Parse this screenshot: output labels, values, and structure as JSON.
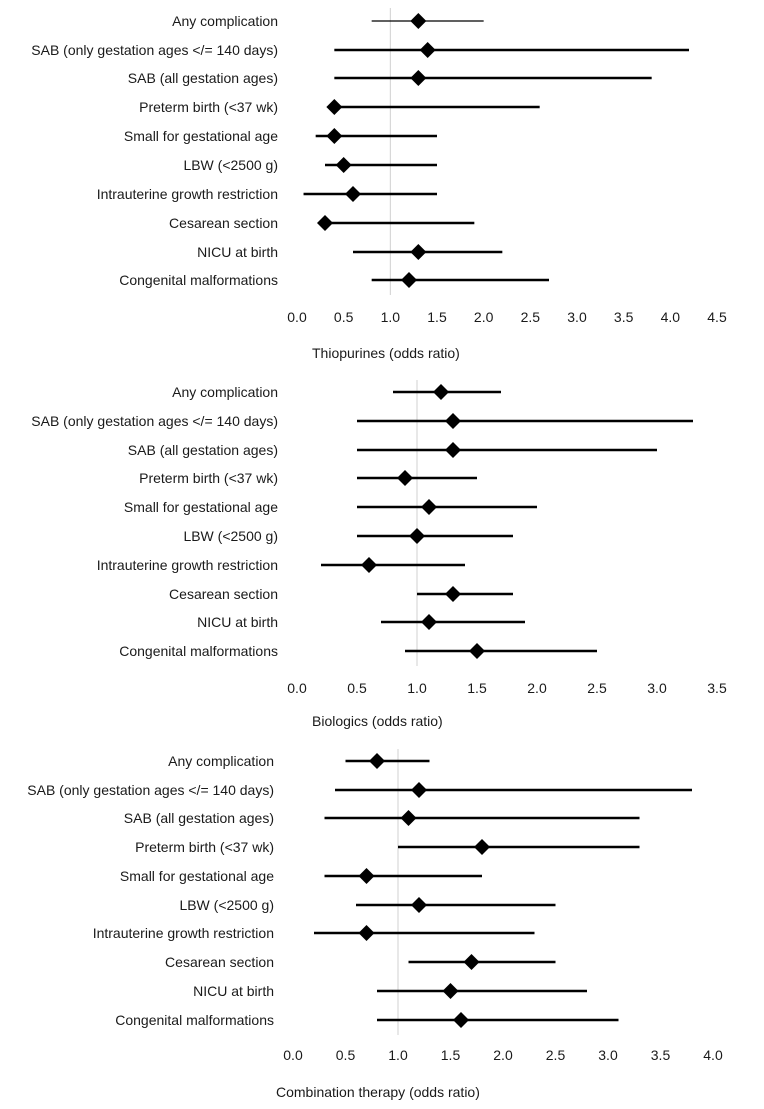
{
  "chart_data": [
    {
      "type": "forest",
      "title": "",
      "xlabel": "Thiopurines (odds ratio)",
      "xlim": [
        0,
        4.5
      ],
      "ticks": [
        "0.0",
        "0.5",
        "1.0",
        "1.5",
        "2.0",
        "2.5",
        "3.0",
        "3.5",
        "4.0",
        "4.5"
      ],
      "reference_line": 1.0,
      "categories": [
        "Any complication",
        "SAB (only gestation ages </= 140 days)",
        "SAB (all gestation ages)",
        "Preterm birth (<37 wk)",
        "Small for gestational age",
        "LBW (<2500 g)",
        "Intrauterine growth restriction",
        "Cesarean section",
        "NICU at birth",
        "Congenital malformations"
      ],
      "odds_ratio": [
        1.3,
        1.4,
        1.3,
        0.4,
        0.4,
        0.5,
        0.6,
        0.3,
        1.3,
        1.2
      ],
      "ci_lower": [
        0.8,
        0.4,
        0.4,
        0.4,
        0.2,
        0.3,
        0.07,
        0.3,
        0.6,
        0.8
      ],
      "ci_upper": [
        2.0,
        4.2,
        3.8,
        2.6,
        1.5,
        1.5,
        1.5,
        1.9,
        2.2,
        2.7
      ]
    },
    {
      "type": "forest",
      "title": "",
      "xlabel": "Biologics (odds ratio)",
      "xlim": [
        0,
        3.5
      ],
      "ticks": [
        "0.0",
        "0.5",
        "1.0",
        "1.5",
        "2.0",
        "2.5",
        "3.0",
        "3.5"
      ],
      "reference_line": 1.0,
      "categories": [
        "Any complication",
        "SAB (only gestation ages </= 140 days)",
        "SAB (all gestation ages)",
        "Preterm birth (<37 wk)",
        "Small for gestational age",
        "LBW (<2500 g)",
        "Intrauterine growth restriction",
        "Cesarean section",
        "NICU at birth",
        "Congenital malformations"
      ],
      "odds_ratio": [
        1.2,
        1.3,
        1.3,
        0.9,
        1.1,
        1.0,
        0.6,
        1.3,
        1.1,
        1.5
      ],
      "ci_lower": [
        0.8,
        0.5,
        0.5,
        0.5,
        0.5,
        0.5,
        0.2,
        1.0,
        0.7,
        0.9
      ],
      "ci_upper": [
        1.7,
        3.3,
        3.0,
        1.5,
        2.0,
        1.8,
        1.4,
        1.8,
        1.9,
        2.5
      ]
    },
    {
      "type": "forest",
      "title": "",
      "xlabel": "Combination therapy (odds ratio)",
      "xlim": [
        0,
        4.0
      ],
      "ticks": [
        "0.0",
        "0.5",
        "1.0",
        "1.5",
        "2.0",
        "2.5",
        "3.0",
        "3.5",
        "4.0"
      ],
      "reference_line": 1.0,
      "categories": [
        "Any complication",
        "SAB (only gestation ages </= 140 days)",
        "SAB (all gestation ages)",
        "Preterm birth (<37 wk)",
        "Small for gestational age",
        "LBW (<2500 g)",
        "Intrauterine growth restriction",
        "Cesarean section",
        "NICU at birth",
        "Congenital malformations"
      ],
      "odds_ratio": [
        0.8,
        1.2,
        1.1,
        1.8,
        0.7,
        1.2,
        0.7,
        1.7,
        1.5,
        1.6
      ],
      "ci_lower": [
        0.5,
        0.4,
        0.3,
        1.0,
        0.3,
        0.6,
        0.2,
        1.1,
        0.8,
        0.8
      ],
      "ci_upper": [
        1.3,
        3.8,
        3.3,
        3.3,
        1.8,
        2.5,
        2.3,
        2.5,
        2.8,
        3.1
      ]
    }
  ],
  "colors": {
    "marker": "#000000",
    "ci_line": "#000000",
    "reference_line": "#d0d0d0",
    "text": "#1a1a1a"
  }
}
